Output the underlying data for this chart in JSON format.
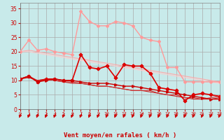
{
  "background_color": "#c8eaea",
  "grid_color": "#aaaaaa",
  "xlabel": "Vent moyen/en rafales ( km/h )",
  "xlabel_color": "#cc0000",
  "xlabel_fontsize": 6.5,
  "tick_color": "#cc0000",
  "ylim": [
    0,
    37
  ],
  "xlim": [
    0,
    23
  ],
  "yticks": [
    0,
    5,
    10,
    15,
    20,
    25,
    30,
    35
  ],
  "xticks": [
    0,
    1,
    2,
    3,
    4,
    5,
    6,
    7,
    8,
    9,
    10,
    11,
    12,
    13,
    14,
    15,
    16,
    17,
    18,
    19,
    20,
    21,
    22,
    23
  ],
  "series": [
    {
      "x": [
        0,
        1,
        2,
        3,
        4,
        5,
        6,
        7,
        8,
        9,
        10,
        11,
        12,
        13,
        14,
        15,
        16,
        17,
        18,
        19,
        20,
        21,
        22,
        23
      ],
      "y": [
        20,
        24,
        20.5,
        21,
        20,
        19.5,
        19,
        34,
        30.5,
        29,
        29,
        30.5,
        30,
        29,
        25,
        24,
        23.5,
        14.5,
        14.5,
        9.5,
        9.5,
        9.5,
        9.5,
        9.5
      ],
      "color": "#ff9999",
      "linewidth": 1.0,
      "marker": "D",
      "markersize": 2.0,
      "zorder": 3
    },
    {
      "x": [
        0,
        1,
        2,
        3,
        4,
        5,
        6,
        7,
        8,
        9,
        10,
        11,
        12,
        13,
        14,
        15,
        16,
        17,
        18,
        19,
        20,
        21,
        22,
        23
      ],
      "y": [
        20,
        20.5,
        20,
        19.5,
        19,
        18.5,
        18,
        17.5,
        17,
        16.5,
        16,
        15.5,
        15,
        14.5,
        14,
        13.5,
        13,
        12.5,
        12,
        11.5,
        11,
        10.5,
        10,
        9.5
      ],
      "color": "#ffaaaa",
      "linewidth": 0.8,
      "marker": null,
      "markersize": 0,
      "zorder": 2
    },
    {
      "x": [
        0,
        1,
        2,
        3,
        4,
        5,
        6,
        7,
        8,
        9,
        10,
        11,
        12,
        13,
        14,
        15,
        16,
        17,
        18,
        19,
        20,
        21,
        22,
        23
      ],
      "y": [
        20,
        20.0,
        19.5,
        19,
        18.5,
        18,
        17.5,
        17,
        16.5,
        16,
        15.5,
        15,
        14.5,
        14,
        13.5,
        13,
        12.5,
        12,
        11.5,
        11,
        10.5,
        10,
        9.5,
        9.0
      ],
      "color": "#ffcccc",
      "linewidth": 0.8,
      "marker": null,
      "markersize": 0,
      "zorder": 2
    },
    {
      "x": [
        0,
        1,
        2,
        3,
        4,
        5,
        6,
        7,
        8,
        9,
        10,
        11,
        12,
        13,
        14,
        15,
        16,
        17,
        18,
        19,
        20,
        21,
        22,
        23
      ],
      "y": [
        10.5,
        11.5,
        9.5,
        10.5,
        10.5,
        10,
        10,
        19,
        14.5,
        14,
        15,
        11,
        15.5,
        15,
        15,
        12.5,
        7.5,
        7,
        6.5,
        3,
        5,
        5.5,
        5,
        4.5
      ],
      "color": "#dd0000",
      "linewidth": 1.2,
      "marker": "P",
      "markersize": 3,
      "zorder": 4
    },
    {
      "x": [
        0,
        1,
        2,
        3,
        4,
        5,
        6,
        7,
        8,
        9,
        10,
        11,
        12,
        13,
        14,
        15,
        16,
        17,
        18,
        19,
        20,
        21,
        22,
        23
      ],
      "y": [
        10.5,
        11,
        10,
        10.5,
        10,
        9.5,
        9,
        9,
        8.5,
        8,
        8,
        7.5,
        7,
        6.5,
        6.5,
        6,
        5.5,
        5,
        4.5,
        4,
        3.5,
        3.5,
        3.5,
        4.0
      ],
      "color": "#cc2222",
      "linewidth": 0.8,
      "marker": null,
      "markersize": 0,
      "zorder": 2
    },
    {
      "x": [
        0,
        1,
        2,
        3,
        4,
        5,
        6,
        7,
        8,
        9,
        10,
        11,
        12,
        13,
        14,
        15,
        16,
        17,
        18,
        19,
        20,
        21,
        22,
        23
      ],
      "y": [
        10.5,
        11.5,
        10,
        10.5,
        10,
        9.5,
        9.5,
        9.0,
        8.5,
        8,
        8,
        7.5,
        7,
        6.5,
        6.5,
        6.5,
        5.5,
        5,
        5,
        4,
        4,
        3.5,
        4,
        4.5
      ],
      "color": "#cc3333",
      "linewidth": 0.8,
      "marker": null,
      "markersize": 0,
      "zorder": 2
    },
    {
      "x": [
        0,
        1,
        2,
        3,
        4,
        5,
        6,
        7,
        8,
        9,
        10,
        11,
        12,
        13,
        14,
        15,
        16,
        17,
        18,
        19,
        20,
        21,
        22,
        23
      ],
      "y": [
        10.5,
        11.5,
        9.5,
        10,
        10.5,
        10,
        10,
        9.5,
        9,
        9,
        9,
        8.5,
        8,
        8,
        7.5,
        7,
        6.5,
        6,
        5.5,
        5,
        4.5,
        4,
        3.5,
        3.5
      ],
      "color": "#cc0000",
      "linewidth": 1.0,
      "marker": ">",
      "markersize": 2.5,
      "zorder": 4
    }
  ],
  "wind_arrows_color": "#cc0000"
}
